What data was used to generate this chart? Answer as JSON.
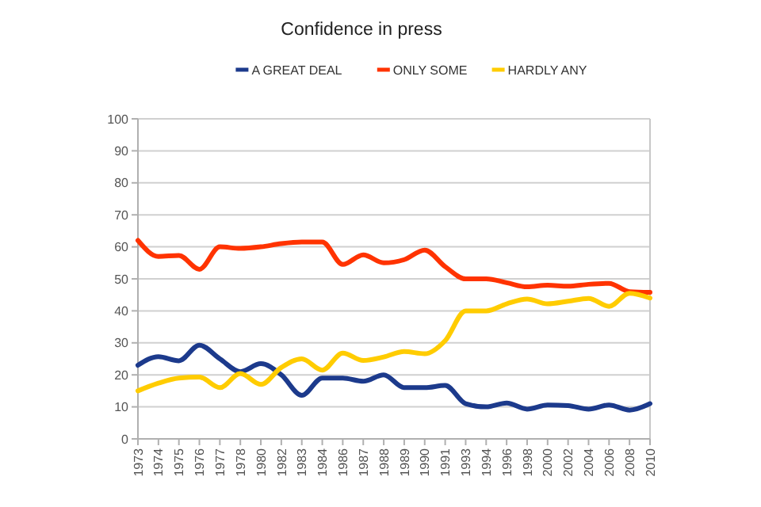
{
  "chart_data": {
    "type": "line",
    "title": "Confidence in press",
    "categories": [
      "1973",
      "1974",
      "1975",
      "1976",
      "1977",
      "1978",
      "1980",
      "1982",
      "1983",
      "1984",
      "1986",
      "1987",
      "1988",
      "1989",
      "1990",
      "1991",
      "1993",
      "1994",
      "1996",
      "1998",
      "2000",
      "2002",
      "2004",
      "2006",
      "2008",
      "2010"
    ],
    "series": [
      {
        "name": "A GREAT DEAL",
        "color": "#1c3a8c",
        "values": [
          23,
          25.7,
          24.4,
          29.3,
          25,
          21,
          23.5,
          20,
          13.6,
          19,
          19,
          18,
          20,
          16,
          16,
          16.7,
          11,
          10,
          11.2,
          9.3,
          10.6,
          10.4,
          9.3,
          10.6,
          9,
          11
        ]
      },
      {
        "name": "ONLY SOME",
        "color": "#ff3300",
        "values": [
          62,
          57,
          57.3,
          53,
          60,
          59.5,
          60,
          61,
          61.5,
          61.5,
          54.5,
          57.5,
          55,
          56,
          59,
          53.8,
          50,
          50,
          48.8,
          47.5,
          48,
          47.7,
          48.3,
          48.6,
          46,
          45.8
        ]
      },
      {
        "name": "HARDLY ANY",
        "color": "#ffcc00",
        "values": [
          15,
          17.4,
          19,
          19.3,
          16,
          20.4,
          17,
          22.3,
          25,
          21.5,
          26.8,
          24.5,
          25.6,
          27.3,
          26.6,
          30.7,
          40,
          40,
          42.2,
          43.7,
          42.2,
          43,
          43.9,
          41.4,
          45.5,
          44
        ]
      }
    ],
    "ylim": [
      0,
      100
    ],
    "yticks": [
      0,
      10,
      20,
      30,
      40,
      50,
      60,
      70,
      80,
      90,
      100
    ],
    "grid": "y",
    "legend": "top",
    "marker": "none",
    "line_style": "solid"
  }
}
